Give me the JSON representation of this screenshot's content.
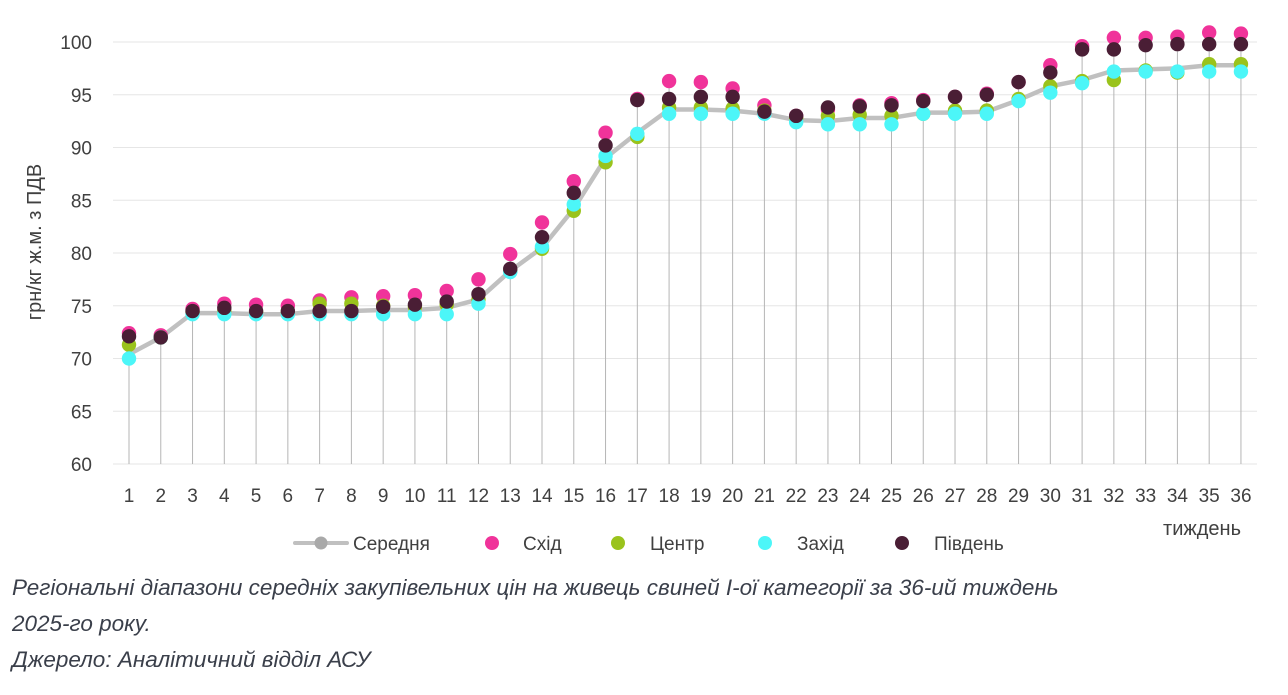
{
  "chart_data": {
    "type": "scatter",
    "ylabel": "грн/кг ж.м. з ПДВ",
    "xlabel": "тиждень",
    "ylim": [
      60,
      100
    ],
    "yticks": [
      60,
      65,
      70,
      75,
      80,
      85,
      90,
      95,
      100
    ],
    "x": [
      1,
      2,
      3,
      4,
      5,
      6,
      7,
      8,
      9,
      10,
      11,
      12,
      13,
      14,
      15,
      16,
      17,
      18,
      19,
      20,
      21,
      22,
      23,
      24,
      25,
      26,
      27,
      28,
      29,
      30,
      31,
      32,
      33,
      34,
      35,
      36
    ],
    "series": [
      {
        "name": "Середня",
        "color": "#c0c0c0",
        "kind": "line",
        "values": [
          70.4,
          72.0,
          74.3,
          74.3,
          74.2,
          74.2,
          74.5,
          74.5,
          74.6,
          74.6,
          74.8,
          75.6,
          78.3,
          80.5,
          84.2,
          89.0,
          91.4,
          93.6,
          93.6,
          93.5,
          93.2,
          92.6,
          92.5,
          92.8,
          92.8,
          93.3,
          93.3,
          93.4,
          94.5,
          95.8,
          96.4,
          97.3,
          97.4,
          97.5,
          97.8,
          97.8
        ]
      },
      {
        "name": "Схід",
        "color": "#f0339a",
        "kind": "marker",
        "values": [
          72.4,
          72.2,
          74.7,
          75.2,
          75.1,
          75.0,
          75.5,
          75.8,
          75.9,
          76.0,
          76.4,
          77.5,
          79.9,
          82.9,
          86.8,
          91.4,
          94.6,
          96.3,
          96.2,
          95.6,
          94.0,
          93.0,
          93.6,
          94.0,
          94.2,
          94.5,
          94.8,
          95.1,
          96.2,
          97.8,
          99.6,
          100.4,
          100.4,
          100.5,
          100.9,
          100.8
        ]
      },
      {
        "name": "Центр",
        "color": "#9ac31c",
        "kind": "marker",
        "values": [
          71.3,
          72.0,
          74.4,
          74.5,
          74.4,
          74.4,
          75.2,
          75.2,
          75.0,
          74.9,
          75.1,
          75.6,
          78.3,
          80.4,
          84.0,
          88.6,
          91.0,
          93.8,
          93.8,
          93.7,
          93.5,
          92.8,
          93.0,
          93.1,
          93.0,
          93.2,
          93.5,
          93.5,
          94.6,
          95.8,
          96.3,
          96.4,
          97.3,
          97.1,
          97.9,
          97.9
        ]
      },
      {
        "name": "Захід",
        "color": "#4cf6f8",
        "kind": "marker",
        "values": [
          70.0,
          72.0,
          74.2,
          74.2,
          74.2,
          74.2,
          74.2,
          74.2,
          74.2,
          74.2,
          74.2,
          75.2,
          78.2,
          80.6,
          84.6,
          89.2,
          91.3,
          93.2,
          93.2,
          93.2,
          93.2,
          92.4,
          92.2,
          92.2,
          92.2,
          93.2,
          93.2,
          93.2,
          94.4,
          95.2,
          96.1,
          97.2,
          97.2,
          97.2,
          97.2,
          97.2
        ]
      },
      {
        "name": "Південь",
        "color": "#4a1e35",
        "kind": "marker",
        "values": [
          72.1,
          72.0,
          74.5,
          74.8,
          74.5,
          74.5,
          74.5,
          74.5,
          74.9,
          75.1,
          75.4,
          76.1,
          78.5,
          81.5,
          85.7,
          90.2,
          94.5,
          94.6,
          94.8,
          94.8,
          93.4,
          93.0,
          93.8,
          93.9,
          94.0,
          94.4,
          94.8,
          95.0,
          96.2,
          97.1,
          99.3,
          99.3,
          99.7,
          99.8,
          99.8,
          99.8
        ]
      }
    ]
  },
  "caption": {
    "line1": "Регіональні діапазони середніх закупівельних цін на живець свиней І-ої категорії за 36-ий тиждень",
    "line2": "2025-го року.",
    "line3": "Джерело: Аналітичний відділ АСУ"
  }
}
